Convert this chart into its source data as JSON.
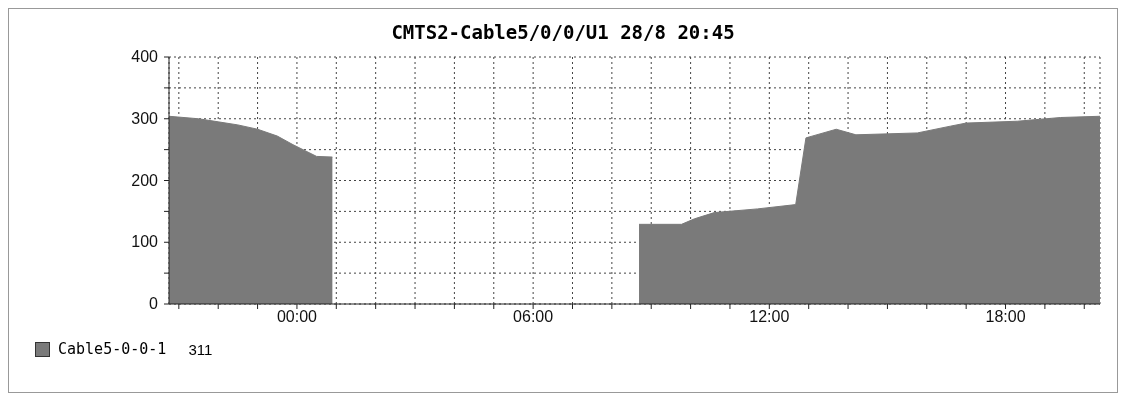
{
  "chart_data": {
    "type": "area",
    "title": "CMTS2-Cable5/0/0/U1 28/8 20:45",
    "x": [
      -3.25,
      -2.5,
      -2.0,
      -1.5,
      -1.0,
      -0.5,
      -0.1,
      0.5,
      0.9,
      1.0,
      8.6,
      8.69,
      9.77,
      10.1,
      10.6,
      11.7,
      12.67,
      12.93,
      13.7,
      14.2,
      15.76,
      16.6,
      17.0,
      18.3,
      19.4,
      20.4
    ],
    "series": [
      {
        "name": "Cable5-0-0-1",
        "color": "#7a7a7a",
        "values": [
          304,
          300,
          295,
          290,
          283,
          272,
          258,
          239,
          238,
          null,
          null,
          129,
          129,
          138,
          148,
          154,
          161,
          269,
          283,
          274,
          277,
          288,
          293,
          296,
          302,
          304
        ]
      }
    ],
    "annotations": [
      "311"
    ],
    "xlim": [
      -3.25,
      20.4
    ],
    "xticks": [
      {
        "value": -3,
        "label": null
      },
      {
        "value": -2,
        "label": null
      },
      {
        "value": -1,
        "label": null
      },
      {
        "value": 0,
        "label": "00:00"
      },
      {
        "value": 1,
        "label": null
      },
      {
        "value": 2,
        "label": null
      },
      {
        "value": 3,
        "label": null
      },
      {
        "value": 4,
        "label": null
      },
      {
        "value": 5,
        "label": null
      },
      {
        "value": 6,
        "label": "06:00"
      },
      {
        "value": 7,
        "label": null
      },
      {
        "value": 8,
        "label": null
      },
      {
        "value": 9,
        "label": null
      },
      {
        "value": 10,
        "label": null
      },
      {
        "value": 11,
        "label": null
      },
      {
        "value": 12,
        "label": "12:00"
      },
      {
        "value": 13,
        "label": null
      },
      {
        "value": 14,
        "label": null
      },
      {
        "value": 15,
        "label": null
      },
      {
        "value": 16,
        "label": null
      },
      {
        "value": 17,
        "label": null
      },
      {
        "value": 18,
        "label": "18:00"
      },
      {
        "value": 19,
        "label": null
      },
      {
        "value": 20,
        "label": null
      }
    ],
    "ylim": [
      0,
      400
    ],
    "yticks": [
      0,
      {
        "value": 50,
        "label": null
      },
      100,
      {
        "value": 150,
        "label": null
      },
      200,
      {
        "value": 250,
        "label": null
      },
      300,
      {
        "value": 350,
        "label": null
      },
      400
    ],
    "grid": true,
    "legend": "bottom",
    "marker": "none",
    "line_style": "solid"
  }
}
